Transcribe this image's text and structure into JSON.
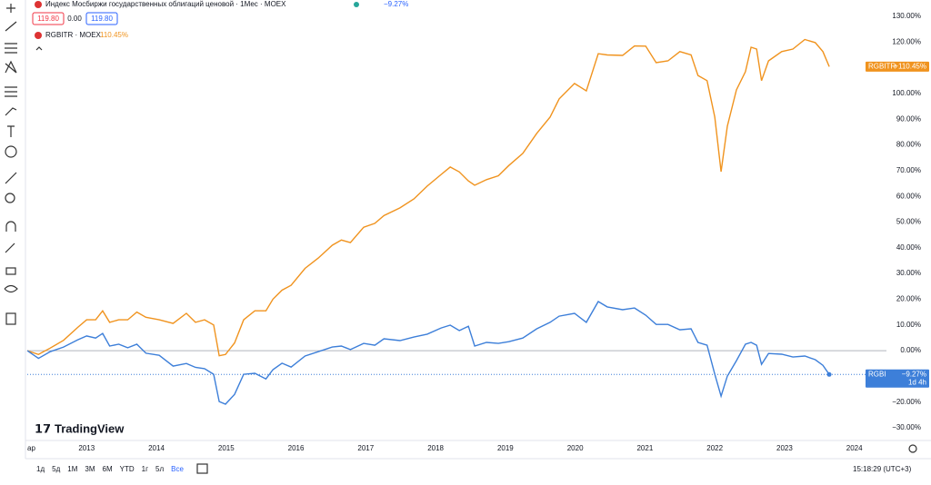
{
  "ui": {
    "header_title": "Индекс Мосбиржи государственных облигаций ценовой · 1Мес · MOEX",
    "header_change": "−9.27%",
    "price_bid": "119.80",
    "price_spread": "0.00",
    "price_ask": "119.80",
    "legend_name": "RGBITR · MOEX",
    "legend_value": "110.45%",
    "badge_orange_value": "+110.45%",
    "badge_blue_value": "−9.27%",
    "badge_blue_timer": "1d 4h",
    "x_start_label": "ар",
    "logo": "TradingView",
    "ranges": [
      "1д",
      "5д",
      "1М",
      "3М",
      "6М",
      "YTD",
      "1г",
      "5л",
      "Все"
    ],
    "clock": "15:18:29 (UTC+3)"
  },
  "chart_data": {
    "type": "line",
    "x": [
      2012.15,
      2012.31,
      2012.48,
      2012.67,
      2012.87,
      2013.0,
      2013.13,
      2013.23,
      2013.33,
      2013.46,
      2013.59,
      2013.72,
      2013.85,
      2014.04,
      2014.24,
      2014.43,
      2014.56,
      2014.69,
      2014.82,
      2014.9,
      2014.99,
      2015.12,
      2015.25,
      2015.41,
      2015.57,
      2015.67,
      2015.8,
      2015.93,
      2016.13,
      2016.32,
      2016.52,
      2016.65,
      2016.78,
      2016.97,
      2017.13,
      2017.26,
      2017.49,
      2017.69,
      2017.88,
      2018.08,
      2018.21,
      2018.34,
      2018.47,
      2018.56,
      2018.73,
      2018.9,
      2019.05,
      2019.25,
      2019.45,
      2019.64,
      2019.77,
      2019.99,
      2020.16,
      2020.33,
      2020.46,
      2020.68,
      2020.85,
      2021.01,
      2021.16,
      2021.33,
      2021.5,
      2021.66,
      2021.76,
      2021.89,
      2022.0,
      2022.09,
      2022.18,
      2022.31,
      2022.44,
      2022.52,
      2022.6,
      2022.67,
      2022.77,
      2022.96,
      2023.12,
      2023.29,
      2023.44,
      2023.55,
      2023.64
    ],
    "series": [
      {
        "name": "RGBITR",
        "color": "#f0931e",
        "values": [
          0,
          -1.5,
          1,
          4,
          9,
          12,
          12,
          15.5,
          11,
          12,
          12,
          15,
          13,
          12,
          10.6,
          14.5,
          11,
          12,
          10,
          -2,
          -1.5,
          3,
          12,
          15.5,
          15.5,
          20,
          23.5,
          25.4,
          32,
          36,
          41,
          43,
          42,
          48,
          49.5,
          52.5,
          55.5,
          59,
          64,
          68.5,
          71.4,
          69.5,
          66,
          64.3,
          66.5,
          68,
          72,
          76.7,
          84.5,
          90.8,
          97.9,
          103.9,
          101,
          115.5,
          115,
          114.8,
          118.5,
          118.4,
          112,
          112.7,
          116.3,
          115,
          107,
          105,
          90.8,
          69.6,
          87.3,
          101.4,
          108.5,
          118,
          117.3,
          105,
          112.7,
          116.3,
          117.3,
          121,
          119.8,
          116.3,
          110.45
        ]
      },
      {
        "name": "RGBI",
        "color": "#3d7fd9",
        "values": [
          0,
          -3,
          -0.4,
          1.4,
          4.2,
          5.7,
          4.9,
          6.7,
          1.8,
          2.5,
          1.1,
          2.5,
          -1,
          -1.8,
          -6,
          -5,
          -6.5,
          -7,
          -9.2,
          -19.8,
          -20.8,
          -17,
          -9.2,
          -8.8,
          -11,
          -7.4,
          -4.9,
          -6.4,
          -2.1,
          -0.4,
          1.4,
          1.8,
          0.4,
          2.8,
          2.1,
          4.6,
          3.9,
          5.3,
          6.4,
          8.8,
          9.9,
          7.8,
          9.5,
          1.8,
          3.2,
          2.8,
          3.5,
          4.9,
          8.5,
          11,
          13.4,
          14.5,
          11,
          19.1,
          17,
          15.9,
          16.6,
          13.8,
          10.2,
          10.2,
          8.1,
          8.5,
          3.2,
          2.1,
          -9.2,
          -17.7,
          -9.9,
          -3.9,
          2.5,
          3.2,
          2.1,
          -5.3,
          -1.1,
          -1.4,
          -2.5,
          -2.1,
          -3.5,
          -5.7,
          -9.27
        ]
      }
    ],
    "xlim": [
      2012.15,
      2024.46
    ],
    "xticks": [
      2013,
      2014,
      2015,
      2016,
      2017,
      2018,
      2019,
      2020,
      2021,
      2022,
      2023,
      2024
    ],
    "ylim": [
      -30,
      130
    ],
    "yticks": [
      {
        "value": 130,
        "label": "130.00%"
      },
      {
        "value": 120,
        "label": "120.00%"
      },
      {
        "value": 110,
        "label": "110.00%"
      },
      {
        "value": 100,
        "label": "100.00%"
      },
      {
        "value": 90,
        "label": "90.00%"
      },
      {
        "value": 80,
        "label": "80.00%"
      },
      {
        "value": 70,
        "label": "70.00%"
      },
      {
        "value": 60,
        "label": "60.00%"
      },
      {
        "value": 50,
        "label": "50.00%"
      },
      {
        "value": 40,
        "label": "40.00%"
      },
      {
        "value": 30,
        "label": "30.00%"
      },
      {
        "value": 20,
        "label": "20.00%"
      },
      {
        "value": 10,
        "label": "10.00%"
      },
      {
        "value": 0,
        "label": "0.00%"
      },
      {
        "value": -20,
        "label": "−20.00%"
      },
      {
        "value": -30,
        "label": "−30.00%"
      }
    ],
    "grid": false
  }
}
